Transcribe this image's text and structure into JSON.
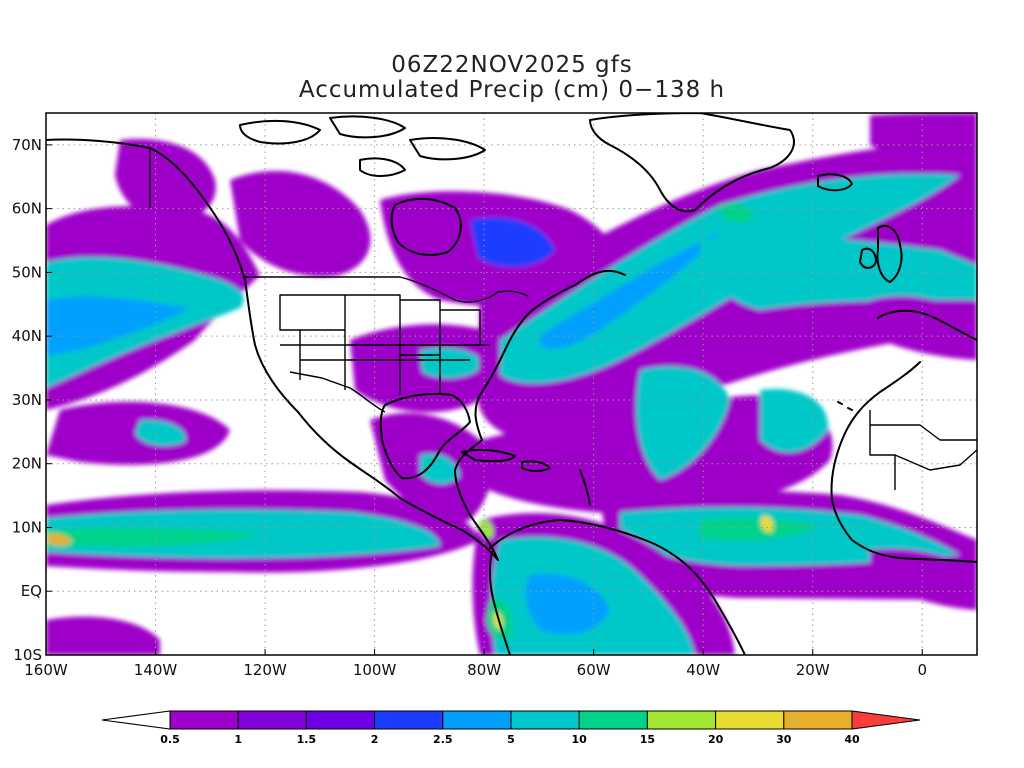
{
  "title": {
    "line1": "06Z22NOV2025 gfs",
    "line2": "Accumulated Precip (cm) 0−138 h"
  },
  "map": {
    "projection": "lat-lon",
    "lon_range": [
      -160,
      10
    ],
    "lat_range": [
      -10,
      75
    ],
    "x_ticks": [
      {
        "value": -160,
        "label": "160W"
      },
      {
        "value": -140,
        "label": "140W"
      },
      {
        "value": -120,
        "label": "120W"
      },
      {
        "value": -100,
        "label": "100W"
      },
      {
        "value": -80,
        "label": "80W"
      },
      {
        "value": -60,
        "label": "60W"
      },
      {
        "value": -40,
        "label": "40W"
      },
      {
        "value": -20,
        "label": "20W"
      },
      {
        "value": 0,
        "label": "0"
      }
    ],
    "y_ticks": [
      {
        "value": 70,
        "label": "70N"
      },
      {
        "value": 60,
        "label": "60N"
      },
      {
        "value": 50,
        "label": "50N"
      },
      {
        "value": 40,
        "label": "40N"
      },
      {
        "value": 30,
        "label": "30N"
      },
      {
        "value": 20,
        "label": "20N"
      },
      {
        "value": 10,
        "label": "10N"
      },
      {
        "value": 0,
        "label": "EQ"
      },
      {
        "value": -10,
        "label": "10S"
      }
    ],
    "grid": true
  },
  "colorbar": {
    "levels": [
      "0.5",
      "1",
      "1.5",
      "2",
      "2.5",
      "5",
      "10",
      "15",
      "20",
      "30",
      "40"
    ],
    "colors": [
      "#9f00c9",
      "#8200dc",
      "#6e00e6",
      "#1e3cff",
      "#00a0ff",
      "#00c8c8",
      "#00d28c",
      "#a0e632",
      "#e6dc32",
      "#e6af2d",
      "#f08228",
      "#fa3c3c"
    ]
  }
}
